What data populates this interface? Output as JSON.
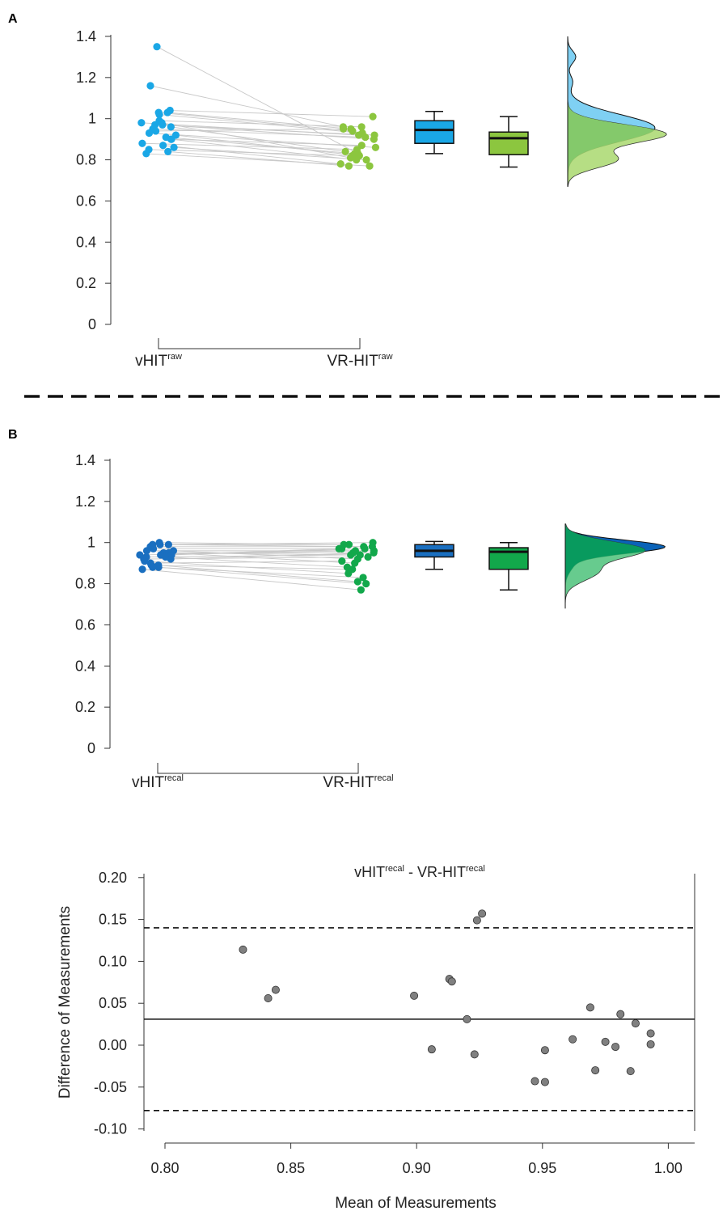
{
  "figure": {
    "panels": [
      {
        "label": "A",
        "y_ticks": [
          "1.4",
          "1.2",
          "1",
          "0.8",
          "0.6",
          "0.4",
          "0.2",
          "0"
        ],
        "groups": [
          {
            "base": "vHIT",
            "sup": "raw"
          },
          {
            "base": "VR-HIT",
            "sup": "raw"
          }
        ]
      },
      {
        "label": "B",
        "y_ticks": [
          "1.4",
          "1.2",
          "1",
          "0.8",
          "0.6",
          "0.4",
          "0.2",
          "0"
        ],
        "groups": [
          {
            "base": "vHIT",
            "sup": "recal"
          },
          {
            "base": "VR-HIT",
            "sup": "recal"
          }
        ]
      }
    ],
    "bland_altman": {
      "title_parts": [
        "vHIT",
        "recal",
        " - VR-HIT",
        "recal"
      ],
      "xlabel": "Mean of Measurements",
      "ylabel": "Difference of Measurements",
      "x_ticks": [
        "0.80",
        "0.85",
        "0.90",
        "0.95",
        "1.00"
      ],
      "y_ticks": [
        "0.20",
        "0.15",
        "0.10",
        "0.05",
        "0.00",
        "-0.05",
        "-0.10"
      ]
    }
  },
  "chart_data": [
    {
      "type": "scatter",
      "panel": "A",
      "ylim": [
        0,
        1.4
      ],
      "grid": false,
      "colors": {
        "vHIT_raw": "#1aa7e6",
        "VR_HIT_raw": "#8cc63f",
        "pair_line": "#c8c8c8",
        "density_vHIT": "#7fd0f3",
        "density_VR": "#a9d86e",
        "density_overlap": "#84c96b"
      },
      "series": [
        {
          "name": "vHIT raw",
          "values": [
            1.35,
            1.16,
            1.04,
            1.03,
            1.03,
            1.02,
            0.99,
            0.98,
            0.98,
            0.97,
            0.97,
            0.96,
            0.95,
            0.94,
            0.93,
            0.92,
            0.91,
            0.9,
            0.9,
            0.88,
            0.87,
            0.86,
            0.85,
            0.84,
            0.83
          ]
        },
        {
          "name": "VR-HIT raw",
          "values": [
            0.83,
            0.96,
            1.01,
            0.95,
            0.94,
            0.93,
            0.96,
            0.92,
            0.81,
            0.9,
            0.92,
            0.84,
            0.91,
            0.95,
            0.86,
            0.82,
            0.83,
            0.87,
            0.8,
            0.85,
            0.78,
            0.8,
            0.82,
            0.77,
            0.77
          ]
        }
      ],
      "boxplots": [
        {
          "name": "vHIT raw",
          "whisker_low": 0.83,
          "q1": 0.88,
          "median": 0.945,
          "q3": 0.99,
          "whisker_high": 1.035
        },
        {
          "name": "VR-HIT raw",
          "whisker_low": 0.765,
          "q1": 0.825,
          "median": 0.905,
          "q3": 0.935,
          "whisker_high": 1.01
        }
      ],
      "density_range": [
        0.67,
        1.4
      ]
    },
    {
      "type": "scatter",
      "panel": "B",
      "ylim": [
        0,
        1.4
      ],
      "grid": false,
      "colors": {
        "vHIT_recal": "#1a6fc0",
        "VR_HIT_recal": "#12a84b",
        "pair_line": "#c8c8c8",
        "density_vHIT": "#0a63b8",
        "density_VR": "#4cc27a",
        "density_overlap": "#089a5e"
      },
      "series": [
        {
          "name": "vHIT recal",
          "values": [
            1.0,
            0.99,
            0.99,
            0.99,
            0.98,
            0.97,
            0.96,
            0.96,
            0.95,
            0.95,
            0.95,
            0.94,
            0.94,
            0.94,
            0.93,
            0.93,
            0.92,
            0.92,
            0.91,
            0.9,
            0.89,
            0.89,
            0.88,
            0.88,
            0.87
          ]
        },
        {
          "name": "VR-HIT recal",
          "values": [
            0.99,
            0.98,
            1.0,
            0.99,
            0.98,
            0.97,
            0.96,
            0.92,
            0.95,
            0.94,
            0.9,
            0.96,
            0.97,
            0.97,
            0.94,
            0.88,
            0.93,
            0.95,
            0.85,
            0.91,
            0.81,
            0.87,
            0.83,
            0.8,
            0.77
          ]
        }
      ],
      "boxplots": [
        {
          "name": "vHIT recal",
          "whisker_low": 0.87,
          "q1": 0.93,
          "median": 0.96,
          "q3": 0.99,
          "whisker_high": 1.005
        },
        {
          "name": "VR-HIT recal",
          "whisker_low": 0.77,
          "q1": 0.87,
          "median": 0.955,
          "q3": 0.975,
          "whisker_high": 1.0
        }
      ],
      "density_range": [
        0.68,
        1.09
      ]
    },
    {
      "type": "scatter",
      "title": "vHIT recal - VR-HIT recal",
      "xlabel": "Mean of Measurements",
      "ylabel": "Difference of Measurements",
      "xlim": [
        0.8,
        1.01
      ],
      "ylim": [
        -0.1,
        0.2
      ],
      "grid": false,
      "point_color": "#808080",
      "mean_difference": 0.031,
      "limits_of_agreement": [
        -0.078,
        0.14
      ],
      "points": [
        {
          "x": 0.831,
          "y": 0.114
        },
        {
          "x": 0.841,
          "y": 0.056
        },
        {
          "x": 0.844,
          "y": 0.066
        },
        {
          "x": 0.899,
          "y": 0.059
        },
        {
          "x": 0.906,
          "y": -0.005
        },
        {
          "x": 0.913,
          "y": 0.079
        },
        {
          "x": 0.914,
          "y": 0.076
        },
        {
          "x": 0.92,
          "y": 0.031
        },
        {
          "x": 0.923,
          "y": -0.011
        },
        {
          "x": 0.924,
          "y": 0.149
        },
        {
          "x": 0.926,
          "y": 0.157
        },
        {
          "x": 0.947,
          "y": -0.043
        },
        {
          "x": 0.951,
          "y": -0.006
        },
        {
          "x": 0.951,
          "y": -0.044
        },
        {
          "x": 0.962,
          "y": 0.007
        },
        {
          "x": 0.969,
          "y": 0.045
        },
        {
          "x": 0.971,
          "y": -0.03
        },
        {
          "x": 0.975,
          "y": 0.004
        },
        {
          "x": 0.979,
          "y": -0.002
        },
        {
          "x": 0.981,
          "y": 0.037
        },
        {
          "x": 0.985,
          "y": -0.031
        },
        {
          "x": 0.987,
          "y": 0.026
        },
        {
          "x": 0.993,
          "y": 0.014
        },
        {
          "x": 0.993,
          "y": 0.001
        }
      ]
    }
  ]
}
